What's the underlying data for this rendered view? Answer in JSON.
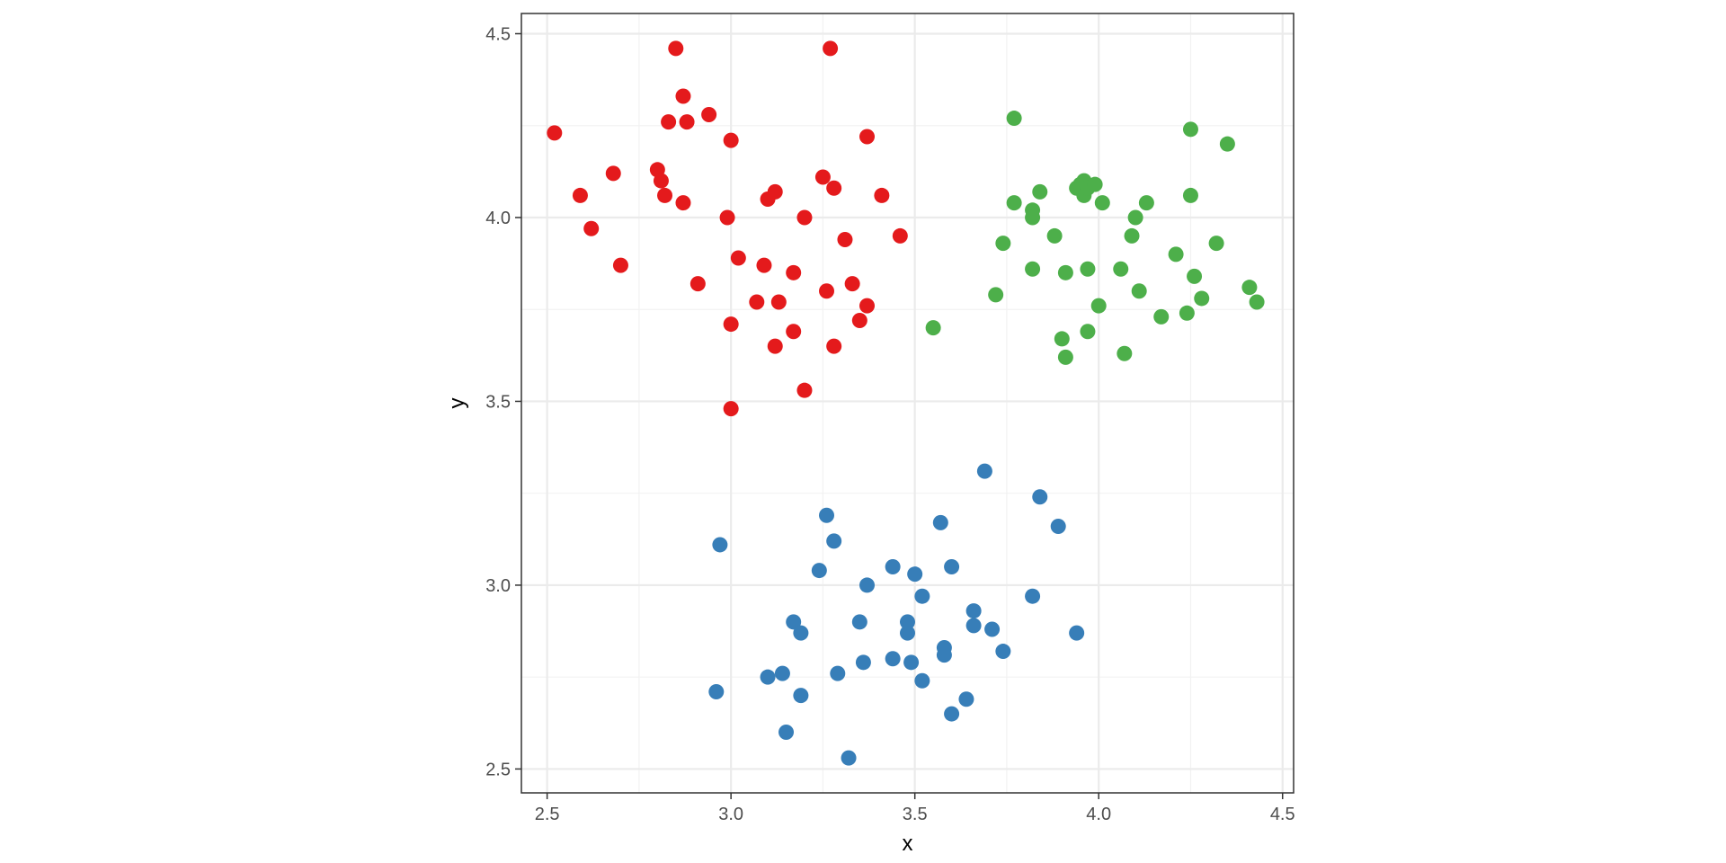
{
  "chart_data": {
    "type": "scatter",
    "xlabel": "x",
    "ylabel": "y",
    "xlim": [
      2.43,
      4.53
    ],
    "ylim": [
      2.435,
      4.555
    ],
    "xticks": [
      2.5,
      3.0,
      3.5,
      4.0,
      4.5
    ],
    "xtick_labels": [
      "2.5",
      "3.0",
      "3.5",
      "4.0",
      "4.5"
    ],
    "yticks": [
      2.5,
      3.0,
      3.5,
      4.0,
      4.5
    ],
    "ytick_labels": [
      "2.5",
      "3.0",
      "3.5",
      "4.0",
      "4.5"
    ],
    "grid": true,
    "legend": "none",
    "series": [
      {
        "color": "#E41A1C",
        "points": [
          [
            2.52,
            4.23
          ],
          [
            2.59,
            4.06
          ],
          [
            2.62,
            3.97
          ],
          [
            2.68,
            4.12
          ],
          [
            2.7,
            3.87
          ],
          [
            2.8,
            4.13
          ],
          [
            2.81,
            4.1
          ],
          [
            2.82,
            4.06
          ],
          [
            2.83,
            4.26
          ],
          [
            2.85,
            4.46
          ],
          [
            2.87,
            4.33
          ],
          [
            2.87,
            4.04
          ],
          [
            2.88,
            4.26
          ],
          [
            2.91,
            3.82
          ],
          [
            2.94,
            4.28
          ],
          [
            2.99,
            4.0
          ],
          [
            3.0,
            4.21
          ],
          [
            3.0,
            3.71
          ],
          [
            3.0,
            3.48
          ],
          [
            3.02,
            3.89
          ],
          [
            3.07,
            3.77
          ],
          [
            3.09,
            3.87
          ],
          [
            3.1,
            4.05
          ],
          [
            3.12,
            4.07
          ],
          [
            3.12,
            3.65
          ],
          [
            3.13,
            3.77
          ],
          [
            3.17,
            3.85
          ],
          [
            3.17,
            3.69
          ],
          [
            3.2,
            4.0
          ],
          [
            3.2,
            3.53
          ],
          [
            3.25,
            4.11
          ],
          [
            3.26,
            3.8
          ],
          [
            3.27,
            4.46
          ],
          [
            3.28,
            4.08
          ],
          [
            3.28,
            3.65
          ],
          [
            3.31,
            3.94
          ],
          [
            3.33,
            3.82
          ],
          [
            3.35,
            3.72
          ],
          [
            3.37,
            4.22
          ],
          [
            3.37,
            3.76
          ],
          [
            3.41,
            4.06
          ],
          [
            3.46,
            3.95
          ]
        ]
      },
      {
        "color": "#4DAF4A",
        "points": [
          [
            3.55,
            3.7
          ],
          [
            3.72,
            3.79
          ],
          [
            3.74,
            3.93
          ],
          [
            3.77,
            4.27
          ],
          [
            3.77,
            4.04
          ],
          [
            3.82,
            4.02
          ],
          [
            3.82,
            4.0
          ],
          [
            3.82,
            3.86
          ],
          [
            3.84,
            4.07
          ],
          [
            3.88,
            3.95
          ],
          [
            3.9,
            3.67
          ],
          [
            3.91,
            3.62
          ],
          [
            3.91,
            3.85
          ],
          [
            3.94,
            4.08
          ],
          [
            3.95,
            4.09
          ],
          [
            3.96,
            4.06
          ],
          [
            3.96,
            4.1
          ],
          [
            3.97,
            4.08
          ],
          [
            3.97,
            3.69
          ],
          [
            3.97,
            3.86
          ],
          [
            3.99,
            4.09
          ],
          [
            4.0,
            3.76
          ],
          [
            4.01,
            4.04
          ],
          [
            4.06,
            3.86
          ],
          [
            4.07,
            3.63
          ],
          [
            4.09,
            3.95
          ],
          [
            4.1,
            4.0
          ],
          [
            4.11,
            3.8
          ],
          [
            4.13,
            4.04
          ],
          [
            4.17,
            3.73
          ],
          [
            4.21,
            3.9
          ],
          [
            4.24,
            3.74
          ],
          [
            4.25,
            4.24
          ],
          [
            4.25,
            4.06
          ],
          [
            4.26,
            3.84
          ],
          [
            4.28,
            3.78
          ],
          [
            4.32,
            3.93
          ],
          [
            4.35,
            4.2
          ],
          [
            4.41,
            3.81
          ],
          [
            4.43,
            3.77
          ]
        ]
      },
      {
        "color": "#377EB8",
        "points": [
          [
            2.96,
            2.71
          ],
          [
            2.97,
            3.11
          ],
          [
            3.1,
            2.75
          ],
          [
            3.14,
            2.76
          ],
          [
            3.15,
            2.6
          ],
          [
            3.17,
            2.9
          ],
          [
            3.19,
            2.87
          ],
          [
            3.19,
            2.7
          ],
          [
            3.24,
            3.04
          ],
          [
            3.26,
            3.19
          ],
          [
            3.28,
            3.12
          ],
          [
            3.29,
            2.76
          ],
          [
            3.32,
            2.53
          ],
          [
            3.35,
            2.9
          ],
          [
            3.36,
            2.79
          ],
          [
            3.37,
            3.0
          ],
          [
            3.44,
            3.05
          ],
          [
            3.44,
            2.8
          ],
          [
            3.48,
            2.87
          ],
          [
            3.48,
            2.9
          ],
          [
            3.49,
            2.79
          ],
          [
            3.5,
            3.03
          ],
          [
            3.52,
            2.97
          ],
          [
            3.52,
            2.74
          ],
          [
            3.57,
            3.17
          ],
          [
            3.58,
            2.81
          ],
          [
            3.58,
            2.83
          ],
          [
            3.6,
            3.05
          ],
          [
            3.6,
            2.65
          ],
          [
            3.64,
            2.69
          ],
          [
            3.66,
            2.93
          ],
          [
            3.66,
            2.89
          ],
          [
            3.69,
            3.31
          ],
          [
            3.71,
            2.88
          ],
          [
            3.74,
            2.82
          ],
          [
            3.82,
            2.97
          ],
          [
            3.84,
            3.24
          ],
          [
            3.89,
            3.16
          ],
          [
            3.94,
            2.87
          ]
        ]
      }
    ]
  }
}
